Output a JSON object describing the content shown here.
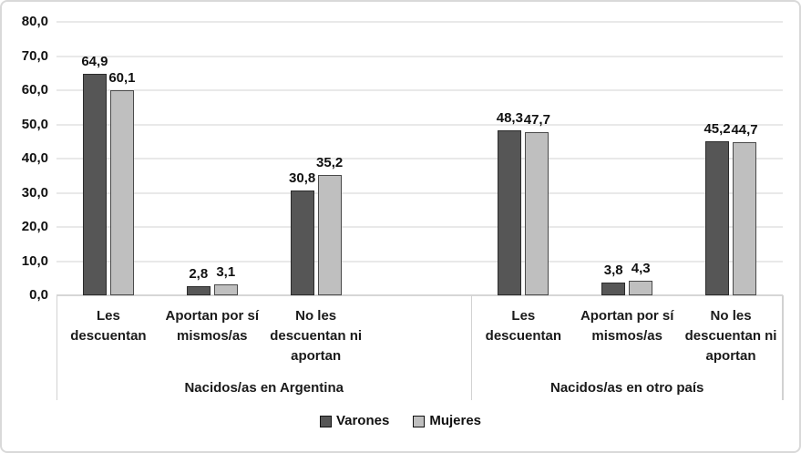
{
  "chart_data": {
    "type": "bar",
    "title": "",
    "xlabel": "",
    "ylabel": "",
    "ylim": [
      0,
      80
    ],
    "y_tick_step": 10,
    "y_tick_labels": [
      "80,0",
      "70,0",
      "60,0",
      "50,0",
      "40,0",
      "30,0",
      "20,0",
      "10,0",
      "0,0"
    ],
    "grid": true,
    "decimal_separator": ",",
    "legend_position": "bottom",
    "series": [
      {
        "name": "Varones",
        "color": "#565656",
        "border_color": "#2b2b2b"
      },
      {
        "name": "Mujeres",
        "color": "#bfbfbf",
        "border_color": "#4a4a4a"
      }
    ],
    "groups": [
      {
        "label": "Nacidos/as en Argentina",
        "categories": [
          "Les\ndescuentan",
          "Aportan por sí\nmismos/as",
          "No les\ndescuentan ni\naportan"
        ],
        "series_values": [
          [
            64.9,
            2.8,
            30.8
          ],
          [
            60.1,
            3.1,
            35.2
          ]
        ]
      },
      {
        "label": "Nacidos/as en otro país",
        "categories": [
          "Les\ndescuentan",
          "Aportan por sí\nmismos/as",
          "No les\ndescuentan ni\naportan"
        ],
        "series_values": [
          [
            48.3,
            3.8,
            45.2
          ],
          [
            47.7,
            4.3,
            44.7
          ]
        ]
      }
    ],
    "data_labels": [
      [
        "64,9",
        "2,8",
        "30,8",
        "48,3",
        "3,8",
        "45,2"
      ],
      [
        "60,1",
        "3,1",
        "35,2",
        "47,7",
        "4,3",
        "44,7"
      ]
    ]
  }
}
